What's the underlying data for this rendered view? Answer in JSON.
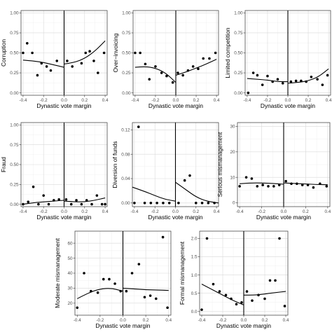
{
  "chart_data": [
    {
      "type": "scatter",
      "ylabel": "Corruption",
      "xlabel": "Dynastic vote margin",
      "xlim": [
        -0.42,
        0.42
      ],
      "ylim": [
        -0.03,
        1.03
      ],
      "xticks": [
        -0.4,
        -0.2,
        0.0,
        0.2,
        0.4
      ],
      "xtick_labels": [
        "-0.4",
        "-0.2",
        "0.0",
        "0.2",
        "0.4"
      ],
      "yticks": [
        0,
        0.25,
        0.5,
        0.75,
        1.0
      ],
      "ytick_labels": [
        "0.00",
        "0.25",
        "0.50",
        "0.75",
        "1.00"
      ],
      "grid": true,
      "cutoff": 0,
      "points": [
        {
          "x": -0.4,
          "y": 0.5
        },
        {
          "x": -0.36,
          "y": 0.62
        },
        {
          "x": -0.31,
          "y": 0.5
        },
        {
          "x": -0.26,
          "y": 0.22
        },
        {
          "x": -0.22,
          "y": 0.37
        },
        {
          "x": -0.17,
          "y": 0.33
        },
        {
          "x": -0.13,
          "y": 0.28
        },
        {
          "x": -0.07,
          "y": 0.4
        },
        {
          "x": 0.03,
          "y": 0.4
        },
        {
          "x": 0.08,
          "y": 0.33
        },
        {
          "x": 0.17,
          "y": 0.37
        },
        {
          "x": 0.21,
          "y": 0.5
        },
        {
          "x": 0.25,
          "y": 0.52
        },
        {
          "x": 0.29,
          "y": 0.4
        },
        {
          "x": 0.33,
          "y": 0.25
        },
        {
          "x": 0.39,
          "y": 0.5
        }
      ],
      "fit_left": [
        [
          -0.4,
          0.41
        ],
        [
          -0.3,
          0.4
        ],
        [
          -0.2,
          0.38
        ],
        [
          -0.1,
          0.35
        ],
        [
          0.0,
          0.32
        ]
      ],
      "fit_right": [
        [
          0.0,
          0.36
        ],
        [
          0.1,
          0.38
        ],
        [
          0.2,
          0.43
        ],
        [
          0.3,
          0.52
        ],
        [
          0.4,
          0.65
        ]
      ]
    },
    {
      "type": "scatter",
      "ylabel": "Over−invoicing",
      "xlabel": "Dynastic vote margin",
      "xlim": [
        -0.42,
        0.42
      ],
      "ylim": [
        -0.03,
        1.03
      ],
      "xticks": [
        -0.4,
        -0.2,
        0.0,
        0.2,
        0.4
      ],
      "xtick_labels": [
        "-0.4",
        "-0.2",
        "0.0",
        "0.2",
        "0.4"
      ],
      "yticks": [
        0,
        0.25,
        0.5,
        0.75,
        1.0
      ],
      "ytick_labels": [
        "0.00",
        "0.25",
        "0.50",
        "0.75",
        "1.00"
      ],
      "grid": true,
      "cutoff": 0,
      "points": [
        {
          "x": -0.4,
          "y": 0.5
        },
        {
          "x": -0.35,
          "y": 0.5
        },
        {
          "x": -0.3,
          "y": 0.36
        },
        {
          "x": -0.26,
          "y": 0.17
        },
        {
          "x": -0.2,
          "y": 0.33
        },
        {
          "x": -0.14,
          "y": 0.25
        },
        {
          "x": -0.09,
          "y": 0.21
        },
        {
          "x": -0.03,
          "y": 0.13
        },
        {
          "x": 0.02,
          "y": 0.25
        },
        {
          "x": 0.07,
          "y": 0.22
        },
        {
          "x": 0.12,
          "y": 0.28
        },
        {
          "x": 0.17,
          "y": 0.33
        },
        {
          "x": 0.22,
          "y": 0.3
        },
        {
          "x": 0.27,
          "y": 0.43
        },
        {
          "x": 0.33,
          "y": 0.43
        },
        {
          "x": 0.39,
          "y": 0.5
        }
      ],
      "fit_left": [
        [
          -0.4,
          0.32
        ],
        [
          -0.3,
          0.33
        ],
        [
          -0.2,
          0.31
        ],
        [
          -0.1,
          0.25
        ],
        [
          0.0,
          0.13
        ]
      ],
      "fit_right": [
        [
          0.0,
          0.22
        ],
        [
          0.1,
          0.26
        ],
        [
          0.2,
          0.31
        ],
        [
          0.3,
          0.36
        ],
        [
          0.4,
          0.42
        ]
      ]
    },
    {
      "type": "scatter",
      "ylabel": "Limited competition",
      "xlabel": "Dynastic vote margin",
      "xlim": [
        -0.42,
        0.42
      ],
      "ylim": [
        -0.03,
        1.03
      ],
      "xticks": [
        -0.4,
        -0.2,
        0.0,
        0.2,
        0.4
      ],
      "xtick_labels": [
        "-0.4",
        "-0.2",
        "0.0",
        "0.2",
        "0.4"
      ],
      "yticks": [
        0,
        0.25,
        0.5,
        0.75,
        1.0
      ],
      "ytick_labels": [
        "0.00",
        "0.25",
        "0.50",
        "0.75",
        "1.00"
      ],
      "grid": true,
      "cutoff": 0,
      "points": [
        {
          "x": -0.39,
          "y": 0.0
        },
        {
          "x": -0.34,
          "y": 0.25
        },
        {
          "x": -0.3,
          "y": 0.22
        },
        {
          "x": -0.25,
          "y": 0.1
        },
        {
          "x": -0.2,
          "y": 0.21
        },
        {
          "x": -0.15,
          "y": 0.14
        },
        {
          "x": -0.1,
          "y": 0.17
        },
        {
          "x": -0.05,
          "y": 0.12
        },
        {
          "x": 0.03,
          "y": 0.14
        },
        {
          "x": 0.08,
          "y": 0.15
        },
        {
          "x": 0.13,
          "y": 0.15
        },
        {
          "x": 0.18,
          "y": 0.14
        },
        {
          "x": 0.23,
          "y": 0.2
        },
        {
          "x": 0.29,
          "y": 0.17
        },
        {
          "x": 0.34,
          "y": 0.1
        },
        {
          "x": 0.39,
          "y": 0.22
        }
      ],
      "fit_left": [
        [
          -0.4,
          0.18
        ],
        [
          -0.3,
          0.17
        ],
        [
          -0.2,
          0.16
        ],
        [
          -0.1,
          0.14
        ],
        [
          0.0,
          0.14
        ]
      ],
      "fit_right": [
        [
          0.0,
          0.12
        ],
        [
          0.1,
          0.13
        ],
        [
          0.2,
          0.15
        ],
        [
          0.3,
          0.2
        ],
        [
          0.4,
          0.3
        ]
      ]
    },
    {
      "type": "scatter",
      "ylabel": "Fraud",
      "xlabel": "Dynastic vote margin",
      "xlim": [
        -0.42,
        0.42
      ],
      "ylim": [
        -0.03,
        1.03
      ],
      "xticks": [
        -0.4,
        -0.2,
        0.0,
        0.2,
        0.4
      ],
      "xtick_labels": [
        "-0.4",
        "-0.2",
        "0.0",
        "0.2",
        "0.4"
      ],
      "yticks": [
        0,
        0.25,
        0.5,
        0.75,
        1.0
      ],
      "ytick_labels": [
        "0.00",
        "0.25",
        "0.50",
        "0.75",
        "1.00"
      ],
      "grid": true,
      "cutoff": 0,
      "points": [
        {
          "x": -0.4,
          "y": 0.0
        },
        {
          "x": -0.35,
          "y": 0.03
        },
        {
          "x": -0.3,
          "y": 0.22
        },
        {
          "x": -0.25,
          "y": 0.0
        },
        {
          "x": -0.2,
          "y": 0.11
        },
        {
          "x": -0.15,
          "y": 0.0
        },
        {
          "x": -0.1,
          "y": 0.05
        },
        {
          "x": -0.05,
          "y": 0.06
        },
        {
          "x": 0.02,
          "y": 0.06
        },
        {
          "x": 0.07,
          "y": 0.0
        },
        {
          "x": 0.12,
          "y": 0.05
        },
        {
          "x": 0.17,
          "y": 0.0
        },
        {
          "x": 0.22,
          "y": 0.05
        },
        {
          "x": 0.27,
          "y": 0.0
        },
        {
          "x": 0.32,
          "y": 0.11
        },
        {
          "x": 0.37,
          "y": 0.0
        },
        {
          "x": 0.4,
          "y": 0.0
        }
      ],
      "fit_left": [
        [
          -0.4,
          0.0
        ],
        [
          -0.3,
          0.02
        ],
        [
          -0.2,
          0.03
        ],
        [
          -0.1,
          0.04
        ],
        [
          0.0,
          0.05
        ]
      ],
      "fit_right": [
        [
          0.0,
          0.04
        ],
        [
          0.1,
          0.03
        ],
        [
          0.2,
          0.03
        ],
        [
          0.3,
          0.05
        ],
        [
          0.4,
          0.08
        ]
      ]
    },
    {
      "type": "scatter",
      "ylabel": "Diversion of funds",
      "xlabel": "Dynastic vote margin",
      "xlim": [
        -0.42,
        0.42
      ],
      "ylim": [
        -0.006,
        0.132
      ],
      "xticks": [
        -0.4,
        -0.2,
        0.0,
        0.2,
        0.4
      ],
      "xtick_labels": [
        "-0.4",
        "-0.2",
        "0.0",
        "0.2",
        "0.4"
      ],
      "yticks": [
        0,
        0.04,
        0.08,
        0.12
      ],
      "ytick_labels": [
        "0.00",
        "0.04",
        "0.08",
        "0.12"
      ],
      "grid": true,
      "cutoff": 0,
      "points": [
        {
          "x": -0.4,
          "y": 0.0
        },
        {
          "x": -0.36,
          "y": 0.125
        },
        {
          "x": -0.3,
          "y": 0.0
        },
        {
          "x": -0.24,
          "y": 0.0
        },
        {
          "x": -0.18,
          "y": 0.0
        },
        {
          "x": -0.12,
          "y": 0.0
        },
        {
          "x": -0.06,
          "y": 0.0
        },
        {
          "x": 0.03,
          "y": 0.0
        },
        {
          "x": 0.09,
          "y": 0.037
        },
        {
          "x": 0.14,
          "y": 0.045
        },
        {
          "x": 0.2,
          "y": 0.0
        },
        {
          "x": 0.26,
          "y": 0.0
        },
        {
          "x": 0.32,
          "y": 0.0
        },
        {
          "x": 0.38,
          "y": 0.0
        }
      ],
      "fit_left": [
        [
          -0.42,
          0.026
        ],
        [
          -0.3,
          0.019
        ],
        [
          -0.2,
          0.012
        ],
        [
          -0.1,
          0.006
        ],
        [
          0.0,
          0.003
        ]
      ],
      "fit_right": [
        [
          0.0,
          0.034
        ],
        [
          0.1,
          0.022
        ],
        [
          0.2,
          0.01
        ],
        [
          0.3,
          0.003
        ],
        [
          0.42,
          0.0
        ]
      ]
    },
    {
      "type": "scatter",
      "ylabel": "Serious mismanagement",
      "xlabel": "Dynastic vote margin",
      "xlim": [
        -0.42,
        0.42
      ],
      "ylim": [
        -1.5,
        31.5
      ],
      "xticks": [
        -0.4,
        -0.2,
        0.0,
        0.2,
        0.4
      ],
      "xtick_labels": [
        "-0.4",
        "-0.2",
        "0.0",
        "0.2",
        "0.4"
      ],
      "yticks": [
        0,
        10,
        20,
        30
      ],
      "ytick_labels": [
        "0",
        "10",
        "20",
        "30"
      ],
      "grid": true,
      "cutoff": 0,
      "points": [
        {
          "x": -0.4,
          "y": 6.5
        },
        {
          "x": -0.34,
          "y": 10
        },
        {
          "x": -0.29,
          "y": 9.5
        },
        {
          "x": -0.24,
          "y": 6.5
        },
        {
          "x": -0.19,
          "y": 7
        },
        {
          "x": -0.14,
          "y": 6.5
        },
        {
          "x": -0.09,
          "y": 6.5
        },
        {
          "x": -0.04,
          "y": 7
        },
        {
          "x": 0.02,
          "y": 8.5
        },
        {
          "x": 0.07,
          "y": 7.5
        },
        {
          "x": 0.12,
          "y": 7.5
        },
        {
          "x": 0.17,
          "y": 7
        },
        {
          "x": 0.22,
          "y": 7
        },
        {
          "x": 0.27,
          "y": 6
        },
        {
          "x": 0.33,
          "y": 7.5
        },
        {
          "x": 0.39,
          "y": 6.5
        }
      ],
      "fit_left": [
        [
          -0.4,
          7.5
        ],
        [
          -0.3,
          7.8
        ],
        [
          -0.2,
          7.8
        ],
        [
          -0.1,
          7.6
        ],
        [
          0.0,
          7.3
        ]
      ],
      "fit_right": [
        [
          0.0,
          7.8
        ],
        [
          0.1,
          7.6
        ],
        [
          0.2,
          7.4
        ],
        [
          0.3,
          7.2
        ],
        [
          0.4,
          7.1
        ]
      ]
    },
    {
      "type": "scatter",
      "ylabel": "Moderate mismanagement",
      "xlabel": "Dynastic vote margin",
      "xlim": [
        -0.42,
        0.42
      ],
      "ylim": [
        12,
        68
      ],
      "xticks": [
        -0.4,
        -0.2,
        0.0,
        0.2,
        0.4
      ],
      "xtick_labels": [
        "-0.4",
        "-0.2",
        "0.0",
        "0.2",
        "0.4"
      ],
      "yticks": [
        20,
        30,
        40,
        50,
        60
      ],
      "ytick_labels": [
        "20",
        "30",
        "40",
        "50",
        "60"
      ],
      "grid": true,
      "cutoff": 0,
      "points": [
        {
          "x": -0.4,
          "y": 17
        },
        {
          "x": -0.34,
          "y": 40
        },
        {
          "x": -0.28,
          "y": 28
        },
        {
          "x": -0.22,
          "y": 27
        },
        {
          "x": -0.17,
          "y": 36
        },
        {
          "x": -0.12,
          "y": 36
        },
        {
          "x": -0.07,
          "y": 33
        },
        {
          "x": -0.02,
          "y": 28
        },
        {
          "x": 0.03,
          "y": 28
        },
        {
          "x": 0.08,
          "y": 40
        },
        {
          "x": 0.14,
          "y": 46
        },
        {
          "x": 0.19,
          "y": 24
        },
        {
          "x": 0.24,
          "y": 25
        },
        {
          "x": 0.29,
          "y": 23
        },
        {
          "x": 0.35,
          "y": 64
        },
        {
          "x": 0.39,
          "y": 17
        }
      ],
      "fit_left": [
        [
          -0.4,
          23
        ],
        [
          -0.3,
          27
        ],
        [
          -0.2,
          29.5
        ],
        [
          -0.1,
          30
        ],
        [
          0.0,
          28
        ]
      ],
      "fit_right": [
        [
          0.0,
          30
        ],
        [
          0.1,
          29.5
        ],
        [
          0.2,
          29
        ],
        [
          0.3,
          28.8
        ],
        [
          0.4,
          28.5
        ]
      ]
    },
    {
      "type": "scatter",
      "ylabel": "Formal mismanagement",
      "xlabel": "Dynastic vote margin",
      "xlim": [
        -0.42,
        0.42
      ],
      "ylim": [
        -0.1,
        2.2
      ],
      "xticks": [
        -0.4,
        -0.2,
        0.0,
        0.2,
        0.4
      ],
      "xtick_labels": [
        "-0.4",
        "-0.2",
        "0.0",
        "0.2",
        "0.4"
      ],
      "yticks": [
        0,
        0.5,
        1.0,
        1.5,
        2.0
      ],
      "ytick_labels": [
        "0.0",
        "0.5",
        "1.0",
        "1.5",
        "2.0"
      ],
      "grid": true,
      "cutoff": 0,
      "points": [
        {
          "x": -0.4,
          "y": 0.05
        },
        {
          "x": -0.35,
          "y": 2.0
        },
        {
          "x": -0.29,
          "y": 0.75
        },
        {
          "x": -0.23,
          "y": 0.55
        },
        {
          "x": -0.17,
          "y": 0.45
        },
        {
          "x": -0.12,
          "y": 0.35
        },
        {
          "x": -0.07,
          "y": 0.2
        },
        {
          "x": -0.02,
          "y": 0.25
        },
        {
          "x": 0.03,
          "y": 0.55
        },
        {
          "x": 0.08,
          "y": 0.3
        },
        {
          "x": 0.14,
          "y": 0.45
        },
        {
          "x": 0.2,
          "y": 0.35
        },
        {
          "x": 0.25,
          "y": 0.85
        },
        {
          "x": 0.3,
          "y": 0.85
        },
        {
          "x": 0.34,
          "y": 2.0
        },
        {
          "x": 0.39,
          "y": 0.15
        }
      ],
      "fit_left": [
        [
          -0.4,
          0.75
        ],
        [
          -0.3,
          0.6
        ],
        [
          -0.2,
          0.45
        ],
        [
          -0.1,
          0.3
        ],
        [
          0.0,
          0.18
        ]
      ],
      "fit_right": [
        [
          0.0,
          0.45
        ],
        [
          0.1,
          0.45
        ],
        [
          0.2,
          0.48
        ],
        [
          0.3,
          0.52
        ],
        [
          0.4,
          0.55
        ]
      ]
    }
  ]
}
